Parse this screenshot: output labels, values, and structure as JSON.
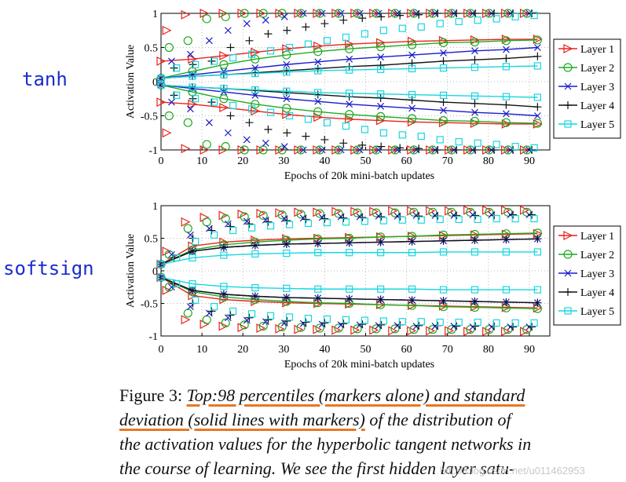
{
  "labels": {
    "top": "tanh",
    "bottom": "softsign"
  },
  "chart_data": [
    {
      "type": "line",
      "xlabel": "Epochs of 20k mini-batch updates",
      "ylabel": "Activation Value",
      "xticks": [
        "0",
        "10",
        "20",
        "30",
        "40",
        "50",
        "60",
        "70",
        "80",
        "90"
      ],
      "yticks": [
        "1",
        "0.5",
        "0",
        "-0.5",
        "-1"
      ],
      "xlim": [
        0,
        95
      ],
      "ylim": [
        -1,
        1
      ],
      "legend": [
        "Layer 1",
        "Layer 2",
        "Layer 3",
        "Layer 4",
        "Layer 5"
      ],
      "legend_position": "right",
      "colors": [
        "#e8231b",
        "#1faa1f",
        "#1a1acc",
        "#111111",
        "#19d6e0"
      ],
      "markers": [
        "triangle-right",
        "circle",
        "x",
        "plus",
        "square"
      ],
      "series_std": [
        {
          "name": "Layer 1",
          "amp": [
            0.3,
            0.33,
            0.38,
            0.43,
            0.48,
            0.52,
            0.55,
            0.57,
            0.59,
            0.6,
            0.61,
            0.62,
            0.62
          ]
        },
        {
          "name": "Layer 2",
          "amp": [
            0.05,
            0.15,
            0.25,
            0.33,
            0.39,
            0.44,
            0.48,
            0.51,
            0.54,
            0.57,
            0.58,
            0.6,
            0.61
          ]
        },
        {
          "name": "Layer 3",
          "amp": [
            0.05,
            0.1,
            0.15,
            0.2,
            0.25,
            0.29,
            0.33,
            0.36,
            0.39,
            0.42,
            0.45,
            0.47,
            0.5
          ]
        },
        {
          "name": "Layer 4",
          "amp": [
            0.05,
            0.08,
            0.1,
            0.13,
            0.16,
            0.19,
            0.22,
            0.24,
            0.27,
            0.3,
            0.32,
            0.34,
            0.37
          ]
        },
        {
          "name": "Layer 5",
          "amp": [
            0.05,
            0.08,
            0.1,
            0.12,
            0.14,
            0.16,
            0.17,
            0.18,
            0.19,
            0.2,
            0.21,
            0.22,
            0.23
          ]
        }
      ],
      "series_p98": [
        {
          "name": "Layer 1",
          "amp": [
            0.75,
            0.98,
            1,
            1,
            1,
            1,
            1,
            1,
            1,
            1,
            1,
            1,
            1,
            1,
            1,
            1,
            1,
            1,
            1,
            1
          ]
        },
        {
          "name": "Layer 2",
          "amp": [
            0.5,
            0.6,
            0.92,
            0.95,
            1,
            1,
            1,
            1,
            1,
            1,
            1,
            1,
            1,
            1,
            1,
            1,
            1,
            1,
            1,
            1
          ]
        },
        {
          "name": "Layer 3",
          "amp": [
            0.3,
            0.4,
            0.6,
            0.75,
            0.85,
            0.9,
            0.95,
            1,
            1,
            1,
            1,
            1,
            1,
            1,
            1,
            1,
            1,
            1,
            1,
            1
          ]
        },
        {
          "name": "Layer 4",
          "amp": [
            0.2,
            0.25,
            0.3,
            0.5,
            0.6,
            0.7,
            0.75,
            0.8,
            0.85,
            0.9,
            0.93,
            0.95,
            0.97,
            0.98,
            1,
            1,
            1,
            1,
            1,
            1
          ]
        },
        {
          "name": "Layer 5",
          "amp": [
            0.2,
            0.25,
            0.3,
            0.35,
            0.4,
            0.45,
            0.5,
            0.55,
            0.6,
            0.65,
            0.7,
            0.75,
            0.78,
            0.8,
            0.85,
            0.88,
            0.9,
            0.92,
            0.95,
            0.97
          ]
        }
      ]
    },
    {
      "type": "line",
      "xlabel": "Epochs of 20k mini-batch updates",
      "ylabel": "Activation Value",
      "xticks": [
        "0",
        "10",
        "20",
        "30",
        "40",
        "50",
        "60",
        "70",
        "80",
        "90"
      ],
      "yticks": [
        "1",
        "0.5",
        "0",
        "-0.5",
        "-1"
      ],
      "xlim": [
        0,
        95
      ],
      "ylim": [
        -1,
        1
      ],
      "legend": [
        "Layer 1",
        "Layer 2",
        "Layer 3",
        "Layer 4",
        "Layer 5"
      ],
      "legend_position": "right",
      "colors": [
        "#e8231b",
        "#1faa1f",
        "#1a1acc",
        "#111111",
        "#19d6e0"
      ],
      "markers": [
        "triangle-right",
        "circle",
        "x",
        "plus",
        "square"
      ],
      "series_std": [
        {
          "name": "Layer 1",
          "amp": [
            0.1,
            0.38,
            0.44,
            0.47,
            0.49,
            0.5,
            0.51,
            0.52,
            0.53,
            0.54,
            0.55,
            0.56,
            0.57
          ]
        },
        {
          "name": "Layer 2",
          "amp": [
            0.1,
            0.32,
            0.4,
            0.44,
            0.47,
            0.49,
            0.5,
            0.52,
            0.53,
            0.55,
            0.56,
            0.57,
            0.58
          ]
        },
        {
          "name": "Layer 3",
          "amp": [
            0.1,
            0.3,
            0.36,
            0.39,
            0.41,
            0.42,
            0.43,
            0.44,
            0.45,
            0.46,
            0.47,
            0.48,
            0.49
          ]
        },
        {
          "name": "Layer 4",
          "amp": [
            0.1,
            0.3,
            0.36,
            0.39,
            0.41,
            0.42,
            0.43,
            0.44,
            0.45,
            0.46,
            0.47,
            0.48,
            0.49
          ]
        },
        {
          "name": "Layer 5",
          "amp": [
            0.1,
            0.2,
            0.24,
            0.26,
            0.27,
            0.28,
            0.28,
            0.28,
            0.28,
            0.29,
            0.29,
            0.29,
            0.29
          ]
        }
      ],
      "series_p98": [
        {
          "name": "Layer 1",
          "amp": [
            0.3,
            0.75,
            0.82,
            0.85,
            0.87,
            0.88,
            0.89,
            0.9,
            0.9,
            0.91,
            0.91,
            0.91,
            0.92,
            0.92,
            0.92,
            0.92,
            0.93,
            0.93,
            0.93,
            0.93
          ]
        },
        {
          "name": "Layer 2",
          "amp": [
            0.25,
            0.65,
            0.75,
            0.8,
            0.83,
            0.85,
            0.86,
            0.87,
            0.88,
            0.88,
            0.89,
            0.89,
            0.89,
            0.9,
            0.9,
            0.9,
            0.9,
            0.9,
            0.9,
            0.9
          ]
        },
        {
          "name": "Layer 3",
          "amp": [
            0.25,
            0.55,
            0.65,
            0.72,
            0.76,
            0.78,
            0.8,
            0.81,
            0.82,
            0.83,
            0.83,
            0.84,
            0.84,
            0.85,
            0.85,
            0.85,
            0.86,
            0.86,
            0.86,
            0.86
          ]
        },
        {
          "name": "Layer 4",
          "amp": [
            0.2,
            0.5,
            0.62,
            0.68,
            0.72,
            0.75,
            0.77,
            0.79,
            0.8,
            0.81,
            0.82,
            0.83,
            0.83,
            0.84,
            0.84,
            0.85,
            0.85,
            0.85,
            0.86,
            0.86
          ]
        },
        {
          "name": "Layer 5",
          "amp": [
            0.2,
            0.45,
            0.55,
            0.62,
            0.66,
            0.69,
            0.71,
            0.73,
            0.74,
            0.75,
            0.76,
            0.77,
            0.78,
            0.78,
            0.79,
            0.79,
            0.79,
            0.8,
            0.8,
            0.8
          ]
        }
      ]
    }
  ],
  "caption": {
    "prefix": "Figure 3: ",
    "part1": "Top:98 percentiles (markers alone) and standard",
    "part2": "deviation (solid lines with markers)",
    "part3": " of the distribution of",
    "line3": "the activation values for the hyperbolic tangent networks in",
    "line4": "the course of learning.  We see the first hidden layer satu-"
  },
  "watermark": "http://blog.csdn.net/u011462953"
}
